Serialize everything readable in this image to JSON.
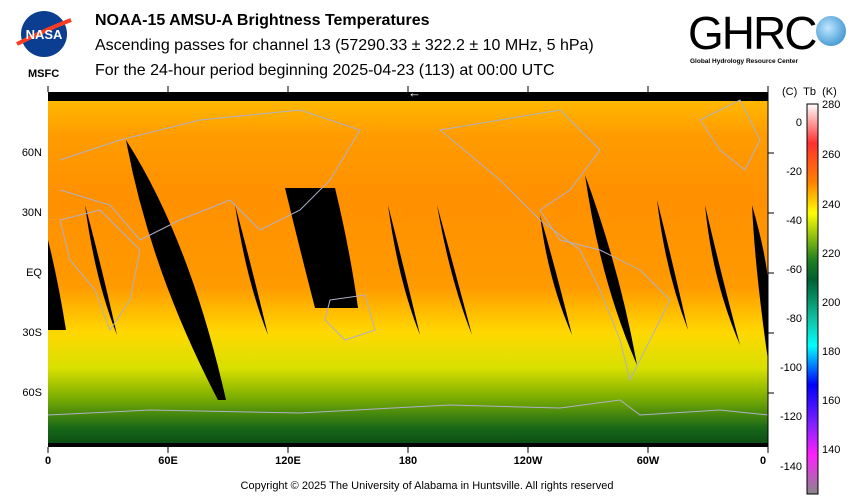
{
  "header": {
    "title": "NOAA-15 AMSU-A Brightness Temperatures",
    "subtitle": "Ascending passes for channel 13 (57290.33 ± 322.2 ± 10 MHz, 5 hPa)",
    "period": "For the 24-hour period beginning 2025-04-23 (113) at 00:00 UTC"
  },
  "logos": {
    "nasa": "NASA",
    "msfc": "MSFC",
    "ghrc": "GHRC",
    "ghrc_full": "Global Hydrology Resource Center"
  },
  "map": {
    "lat_labels": [
      "60N",
      "30N",
      "EQ",
      "30S",
      "60S"
    ],
    "lon_labels": [
      "0",
      "60E",
      "120E",
      "180",
      "120W",
      "60W",
      "0"
    ],
    "direction_arrow": "←"
  },
  "colorbar": {
    "header": "(C)  Tb  (K)",
    "celsius": [
      "0",
      "-20",
      "-40",
      "-60",
      "-80",
      "-100",
      "-120",
      "-140"
    ],
    "kelvin": [
      "280",
      "260",
      "240",
      "220",
      "200",
      "180",
      "160",
      "140"
    ],
    "range_k": [
      128,
      280
    ]
  },
  "footer": "Copyright © 2025 The University of Alabama in Huntsville.  All rights reserved"
}
